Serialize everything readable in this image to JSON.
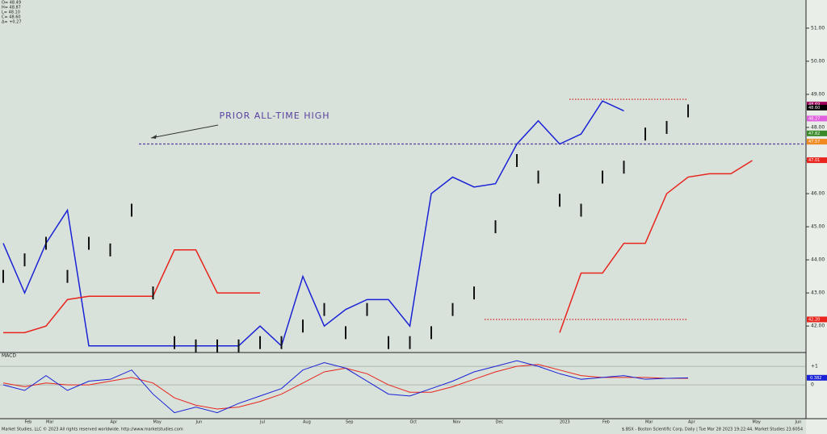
{
  "chart_data": [
    {
      "type": "price",
      "ohlc": [
        "O= 48.49",
        "H= 48.87",
        "L= 48.10",
        "C= 48.60",
        "Δ= +0.27"
      ],
      "annotation": "PRIOR ALL-TIME HIGH",
      "categories": [
        null,
        "Feb",
        "Mar",
        null,
        null,
        "Apr",
        null,
        "May",
        null,
        "Jun",
        null,
        null,
        "Jul",
        null,
        "Aug",
        null,
        "Sep",
        null,
        null,
        "Oct",
        null,
        "Nov",
        null,
        "Dec",
        null,
        null,
        "2023",
        null,
        "Feb",
        null,
        "Mar",
        null,
        "Apr",
        null,
        null,
        "May",
        null,
        "Jun"
      ],
      "values": [
        43.5,
        44.0,
        44.5,
        43.5,
        44.5,
        44.3,
        45.5,
        43.0,
        41.5,
        41.4,
        41.4,
        41.4,
        41.5,
        41.5,
        42.0,
        42.5,
        41.8,
        42.5,
        41.5,
        41.5,
        41.8,
        42.5,
        43.0,
        45.0,
        47.0,
        46.5,
        45.8,
        45.5,
        46.5,
        46.8,
        47.8,
        48.0,
        48.5,
        null,
        null,
        null,
        null,
        null
      ],
      "color": "#111111",
      "overlays": [
        {
          "color": "#1a22d6",
          "values": [
            44.5,
            43.0,
            44.5,
            45.5,
            41.4,
            41.4,
            41.4,
            41.4,
            41.4,
            41.4,
            41.4,
            41.4,
            42.0,
            41.4,
            43.5,
            42.0,
            42.5,
            42.8,
            42.8,
            42.0,
            46.0,
            46.5,
            46.2,
            46.3,
            47.5,
            48.2,
            47.5,
            47.8,
            48.8,
            48.5,
            null,
            null,
            null,
            null,
            null,
            null,
            null,
            null
          ]
        },
        {
          "color": "#e8241c",
          "values": [
            41.8,
            41.8,
            42.0,
            42.8,
            42.9,
            42.9,
            42.9,
            42.9,
            44.3,
            44.3,
            43.0,
            43.0,
            43.0,
            null,
            null,
            null,
            null,
            null,
            null,
            null,
            null,
            null,
            null,
            null,
            null,
            null,
            41.8,
            43.6,
            43.6,
            44.5,
            44.5,
            46.0,
            46.5,
            46.6,
            46.6,
            47.0,
            null,
            null
          ]
        }
      ],
      "reference_lines": [
        {
          "value": 47.5,
          "color": "#5a3fa0"
        },
        {
          "value": 48.85,
          "color": "#d02020"
        },
        {
          "value": 42.2,
          "color": "#d02020"
        }
      ],
      "right_labels": [
        {
          "value": 48.69,
          "label": "48.69",
          "color": "#a0005a"
        },
        {
          "value": 48.6,
          "label": "48.60",
          "color": "#000000"
        },
        {
          "value": 48.27,
          "label": "48.27",
          "color": "#e060e0"
        },
        {
          "value": 47.82,
          "label": "47.82",
          "color": "#3a8a2a"
        },
        {
          "value": 47.57,
          "label": "47.57",
          "color": "#f08a20"
        },
        {
          "value": 47.01,
          "label": "47.01",
          "color": "#e8241c"
        },
        {
          "value": 42.2,
          "label": "42.20",
          "color": "#e8241c"
        }
      ],
      "ylim": [
        41.2,
        51.85
      ],
      "yticks": [
        {
          "value": 42,
          "label": "42.00"
        },
        {
          "value": 43,
          "label": "43.00"
        },
        {
          "value": 44,
          "label": "44.00"
        },
        {
          "value": 45,
          "label": "45.00"
        },
        {
          "value": 46,
          "label": "46.00"
        },
        {
          "value": 47,
          "label": "47.00"
        },
        {
          "value": 48,
          "label": "48.00"
        },
        {
          "value": 49,
          "label": "49.00"
        },
        {
          "value": 50,
          "label": "50.00"
        },
        {
          "value": 51,
          "label": "51.00"
        }
      ]
    },
    {
      "type": "macd",
      "title": "MACD",
      "values": [
        0,
        -0.3,
        0.5,
        -0.3,
        0.2,
        0.3,
        0.8,
        -0.5,
        -1.5,
        -1.2,
        -1.5,
        -1.0,
        -0.6,
        -0.2,
        0.8,
        1.2,
        0.9,
        0.2,
        -0.5,
        -0.6,
        -0.2,
        0.2,
        0.7,
        1.0,
        1.3,
        1.0,
        0.6,
        0.3,
        0.4,
        0.5,
        0.3,
        0.35,
        0.38,
        null,
        null,
        null,
        null,
        null
      ],
      "signal": [
        0.1,
        -0.1,
        0.1,
        0.0,
        0.0,
        0.2,
        0.4,
        0.1,
        -0.7,
        -1.1,
        -1.3,
        -1.2,
        -0.9,
        -0.5,
        0.1,
        0.7,
        0.9,
        0.6,
        0.0,
        -0.4,
        -0.4,
        -0.1,
        0.3,
        0.7,
        1.0,
        1.1,
        0.8,
        0.5,
        0.4,
        0.4,
        0.4,
        0.35,
        0.35,
        null,
        null,
        null,
        null,
        null
      ],
      "colors": [
        "#1a22d6",
        "#e8241c"
      ],
      "last_label": {
        "value": 0.382,
        "label": "0.382"
      },
      "ylim": [
        -1.78,
        1.7
      ],
      "yticks": [
        {
          "value": 1,
          "label": "+1"
        },
        0
      ]
    }
  ],
  "footer": {
    "left": "Market Studies, LLC © 2023 All rights reserved worldwide. http://www.marketstudies.com",
    "right": "$.BSX - Boston Scientific Corp, Daily | Tue Mar 28 2023 19:22:44, Market Studies 23.6054"
  }
}
